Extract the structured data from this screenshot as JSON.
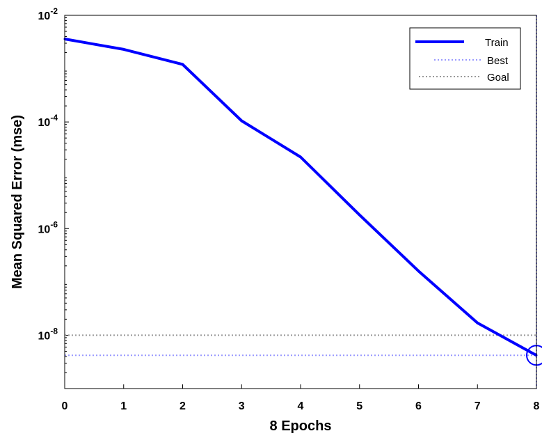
{
  "chart_data": {
    "type": "line",
    "xlabel": "8 Epochs",
    "ylabel": "Mean Squared Error  (mse)",
    "xlim": [
      0,
      8
    ],
    "ylim": [
      1e-09,
      0.01
    ],
    "yscale": "log",
    "x_ticks": [
      "0",
      "1",
      "2",
      "3",
      "4",
      "5",
      "6",
      "7",
      "8"
    ],
    "y_ticks": [
      {
        "base": "10",
        "exp": "-2",
        "value": 0.01
      },
      {
        "base": "10",
        "exp": "-4",
        "value": 0.0001
      },
      {
        "base": "10",
        "exp": "-6",
        "value": 1e-06
      },
      {
        "base": "10",
        "exp": "-8",
        "value": 1e-08
      }
    ],
    "series": [
      {
        "name": "Train",
        "color": "#0000ff",
        "x": [
          0,
          1,
          2,
          3,
          4,
          5,
          6,
          7,
          8
        ],
        "y": [
          0.0036,
          0.0023,
          0.0012,
          0.000105,
          2.2e-05,
          1.8e-06,
          1.6e-07,
          1.7e-08,
          4.2e-09
        ]
      }
    ],
    "best": {
      "name": "Best",
      "epoch": 8,
      "value": 4.2e-09,
      "color": "#9999ff"
    },
    "goal": {
      "name": "Goal",
      "value": 1e-08,
      "color": "#999999"
    },
    "legend": {
      "position": "top-right",
      "entries": [
        "Train",
        "Best",
        "Goal"
      ]
    },
    "grid": false
  }
}
